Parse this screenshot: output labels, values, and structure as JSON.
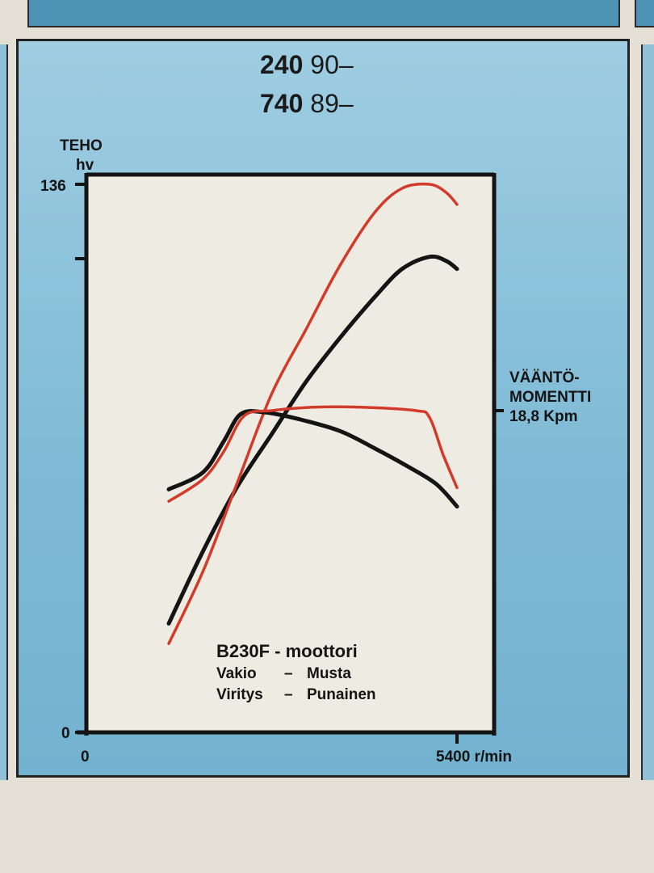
{
  "header": {
    "lines": [
      {
        "model": "240",
        "years": "90–"
      },
      {
        "model": "740",
        "years": "89–"
      }
    ]
  },
  "chart_data": {
    "type": "line",
    "left_axis": {
      "label_top": "TEHO",
      "label_unit": "hv",
      "max_label": "136",
      "min_label": "0",
      "range": [
        0,
        136
      ]
    },
    "right_axis": {
      "label_lines": [
        "VÄÄNTÖ-",
        "MOMENTTI"
      ],
      "ref_label": "18,8 Kpm",
      "ref_value": 18.8
    },
    "x_axis": {
      "start_label": "0",
      "end_label": "5400 r/min",
      "range": [
        0,
        5400
      ],
      "mark_value": 5400
    },
    "legend": {
      "title": "B230F - moottori",
      "entries": [
        {
          "name": "Vakio",
          "dash": "–",
          "color_name": "Musta"
        },
        {
          "name": "Viritys",
          "dash": "–",
          "color_name": "Punainen"
        }
      ]
    },
    "colors": {
      "vakio": "#141414",
      "viritys": "#d23a2a"
    },
    "series": [
      {
        "name": "Vakio",
        "kind": "teho",
        "color_key": "vakio",
        "points": [
          [
            1200,
            27
          ],
          [
            1700,
            45
          ],
          [
            2200,
            61
          ],
          [
            2700,
            74
          ],
          [
            3200,
            87
          ],
          [
            3700,
            98
          ],
          [
            4200,
            108
          ],
          [
            4600,
            115
          ],
          [
            5000,
            118
          ],
          [
            5240,
            117
          ],
          [
            5400,
            115
          ]
        ]
      },
      {
        "name": "Viritys",
        "kind": "teho",
        "color_key": "viritys",
        "points": [
          [
            1200,
            22
          ],
          [
            1700,
            40
          ],
          [
            2200,
            62
          ],
          [
            2700,
            84
          ],
          [
            3200,
            100
          ],
          [
            3700,
            116
          ],
          [
            4200,
            129
          ],
          [
            4600,
            135
          ],
          [
            5000,
            136
          ],
          [
            5240,
            134
          ],
          [
            5400,
            131
          ]
        ]
      },
      {
        "name": "Vakio",
        "kind": "vaantomomentti",
        "color_key": "vakio",
        "points": [
          [
            1200,
            14.2
          ],
          [
            1700,
            15.2
          ],
          [
            2000,
            17.0
          ],
          [
            2250,
            18.6
          ],
          [
            2600,
            18.7
          ],
          [
            3100,
            18.3
          ],
          [
            3700,
            17.6
          ],
          [
            4200,
            16.6
          ],
          [
            4700,
            15.5
          ],
          [
            5100,
            14.5
          ],
          [
            5400,
            13.2
          ]
        ]
      },
      {
        "name": "Viritys",
        "kind": "vaantomomentti",
        "color_key": "viritys",
        "points": [
          [
            1200,
            13.5
          ],
          [
            1700,
            14.8
          ],
          [
            2000,
            16.4
          ],
          [
            2300,
            18.5
          ],
          [
            2700,
            18.8
          ],
          [
            3300,
            19.0
          ],
          [
            4000,
            19.0
          ],
          [
            4800,
            18.8
          ],
          [
            5000,
            18.4
          ],
          [
            5200,
            16.2
          ],
          [
            5400,
            14.3
          ]
        ]
      }
    ]
  }
}
